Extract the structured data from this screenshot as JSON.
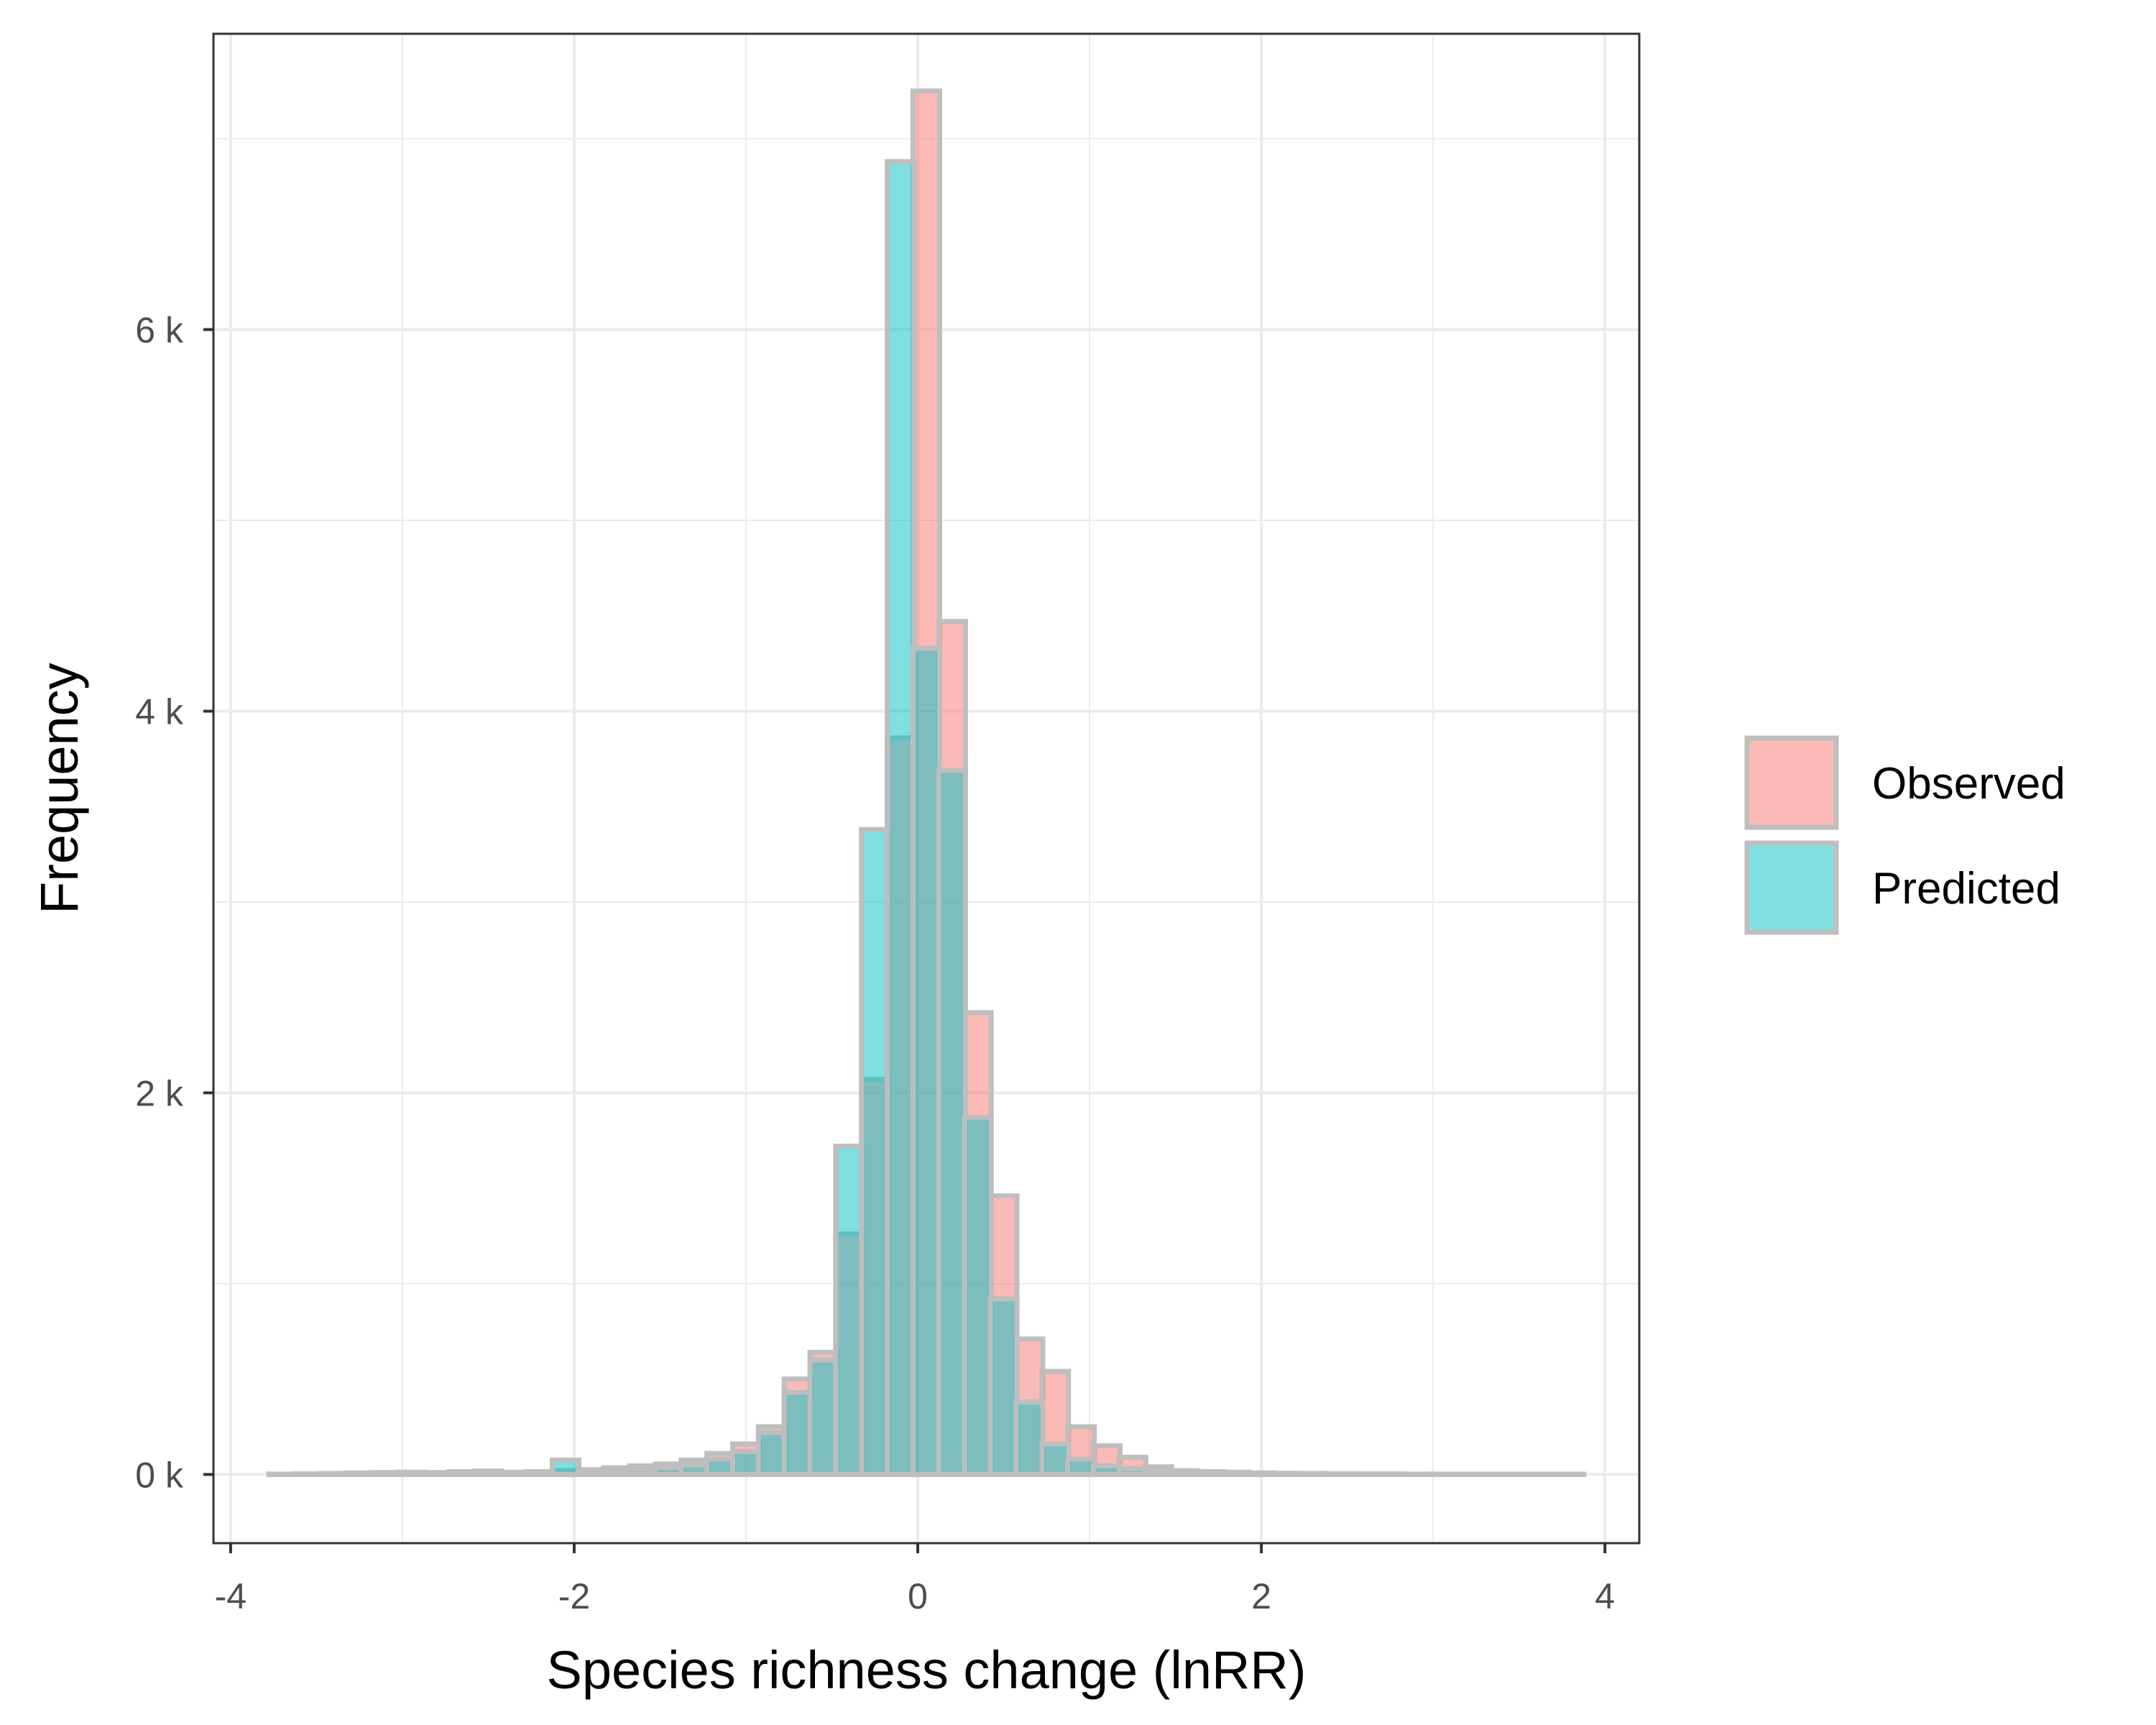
{
  "chart_data": {
    "type": "bar",
    "subtype": "overlaid-histogram",
    "title": "",
    "xlabel": "Species richness change (lnRR)",
    "ylabel": "Frequency",
    "xlim": [
      -4.1,
      4.2
    ],
    "ylim": [
      -360,
      7550
    ],
    "x_ticks": [
      {
        "value": -4,
        "label": "-4"
      },
      {
        "value": -2,
        "label": "-2"
      },
      {
        "value": 0,
        "label": "0"
      },
      {
        "value": 2,
        "label": "2"
      },
      {
        "value": 4,
        "label": "4"
      }
    ],
    "y_ticks": [
      {
        "value": 0,
        "label": "0 k"
      },
      {
        "value": 2000,
        "label": "2 k"
      },
      {
        "value": 4000,
        "label": "4 k"
      },
      {
        "value": 6000,
        "label": "6 k"
      }
    ],
    "grid": true,
    "legend_position": "right",
    "bin_width": 0.155,
    "x": [
      -3.7,
      -3.55,
      -3.4,
      -3.25,
      -3.1,
      -2.95,
      -2.8,
      -2.65,
      -2.5,
      -2.35,
      -2.2,
      -2.05,
      -1.9,
      -1.75,
      -1.6,
      -1.45,
      -1.3,
      -1.15,
      -1.0,
      -0.85,
      -0.7,
      -0.55,
      -0.4,
      -0.25,
      -0.1,
      0.05,
      0.2,
      0.35,
      0.5,
      0.65,
      0.8,
      0.95,
      1.1,
      1.25,
      1.4,
      1.55,
      1.7,
      1.85,
      2.0,
      2.15,
      2.3,
      2.45,
      2.6,
      2.75,
      2.9,
      3.05,
      3.2,
      3.35,
      3.5,
      3.65,
      3.8
    ],
    "series": [
      {
        "name": "Observed",
        "color": "#f8766d",
        "values": [
          2,
          3,
          5,
          8,
          10,
          12,
          10,
          15,
          18,
          12,
          15,
          20,
          25,
          35,
          45,
          55,
          75,
          110,
          160,
          250,
          500,
          640,
          1260,
          2070,
          3860,
          7250,
          4470,
          2420,
          1460,
          710,
          540,
          250,
          150,
          90,
          40,
          20,
          15,
          12,
          8,
          6,
          5,
          4,
          3,
          3,
          2,
          2,
          1,
          1,
          1,
          1,
          1
        ]
      },
      {
        "name": "Predicted",
        "color": "#00bfc4",
        "values": [
          1,
          2,
          3,
          5,
          6,
          8,
          6,
          10,
          12,
          8,
          10,
          75,
          18,
          22,
          28,
          35,
          50,
          80,
          120,
          220,
          430,
          600,
          1720,
          3380,
          6880,
          4330,
          3690,
          1870,
          920,
          380,
          160,
          80,
          45,
          30,
          15,
          10,
          8,
          6,
          5,
          4,
          3,
          3,
          2,
          2,
          1,
          1,
          1,
          1,
          1,
          1,
          1
        ]
      }
    ]
  }
}
